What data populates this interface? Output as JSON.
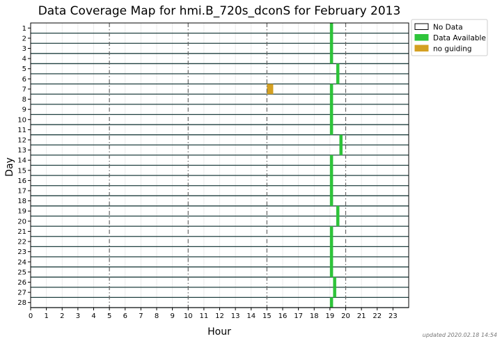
{
  "chart_data": {
    "type": "heatmap",
    "title": "Data Coverage Map for hmi.B_720s_dconS for February 2013",
    "xlabel": "Hour",
    "ylabel": "Day",
    "xlim": [
      0,
      24
    ],
    "x_ticks": [
      0,
      1,
      2,
      3,
      4,
      5,
      6,
      7,
      8,
      9,
      10,
      11,
      12,
      13,
      14,
      15,
      16,
      17,
      18,
      19,
      20,
      21,
      22,
      23
    ],
    "major_x_gridlines": [
      5,
      10,
      15,
      20
    ],
    "days": [
      1,
      2,
      3,
      4,
      5,
      6,
      7,
      8,
      9,
      10,
      11,
      12,
      13,
      14,
      15,
      16,
      17,
      18,
      19,
      20,
      21,
      22,
      23,
      24,
      25,
      26,
      27,
      28
    ],
    "legend": {
      "placement": "outside-top-right",
      "entries": [
        {
          "label": "No Data",
          "color": "#ffffff"
        },
        {
          "label": "Data Available",
          "color": "#2ec43a"
        },
        {
          "label": "no guiding",
          "color": "#d4a022"
        }
      ]
    },
    "series": [
      {
        "name": "Data Available",
        "color": "#2ec43a",
        "intervals": [
          {
            "day": 1,
            "start": 19.0,
            "end": 19.2
          },
          {
            "day": 2,
            "start": 19.0,
            "end": 19.2
          },
          {
            "day": 3,
            "start": 19.0,
            "end": 19.2
          },
          {
            "day": 4,
            "start": 19.0,
            "end": 19.2
          },
          {
            "day": 5,
            "start": 19.4,
            "end": 19.6
          },
          {
            "day": 6,
            "start": 19.4,
            "end": 19.6
          },
          {
            "day": 7,
            "start": 19.0,
            "end": 19.2
          },
          {
            "day": 8,
            "start": 19.0,
            "end": 19.2
          },
          {
            "day": 9,
            "start": 19.0,
            "end": 19.2
          },
          {
            "day": 10,
            "start": 19.0,
            "end": 19.2
          },
          {
            "day": 11,
            "start": 19.0,
            "end": 19.2
          },
          {
            "day": 12,
            "start": 19.6,
            "end": 19.8
          },
          {
            "day": 13,
            "start": 19.6,
            "end": 19.8
          },
          {
            "day": 14,
            "start": 19.0,
            "end": 19.2
          },
          {
            "day": 15,
            "start": 19.0,
            "end": 19.2
          },
          {
            "day": 16,
            "start": 19.0,
            "end": 19.2
          },
          {
            "day": 17,
            "start": 19.0,
            "end": 19.2
          },
          {
            "day": 18,
            "start": 19.0,
            "end": 19.2
          },
          {
            "day": 19,
            "start": 19.4,
            "end": 19.6
          },
          {
            "day": 20,
            "start": 19.4,
            "end": 19.6
          },
          {
            "day": 21,
            "start": 19.0,
            "end": 19.2
          },
          {
            "day": 22,
            "start": 19.0,
            "end": 19.2
          },
          {
            "day": 23,
            "start": 19.0,
            "end": 19.2
          },
          {
            "day": 24,
            "start": 19.0,
            "end": 19.2
          },
          {
            "day": 25,
            "start": 19.0,
            "end": 19.2
          },
          {
            "day": 26,
            "start": 19.2,
            "end": 19.4
          },
          {
            "day": 27,
            "start": 19.2,
            "end": 19.4
          },
          {
            "day": 28,
            "start": 19.0,
            "end": 19.2
          }
        ]
      },
      {
        "name": "no guiding",
        "color": "#d4a022",
        "intervals": [
          {
            "day": 7,
            "start": 15.0,
            "end": 15.4
          }
        ]
      }
    ]
  },
  "footer": {
    "updated_text": "updated 2020.02.18 14:54"
  }
}
